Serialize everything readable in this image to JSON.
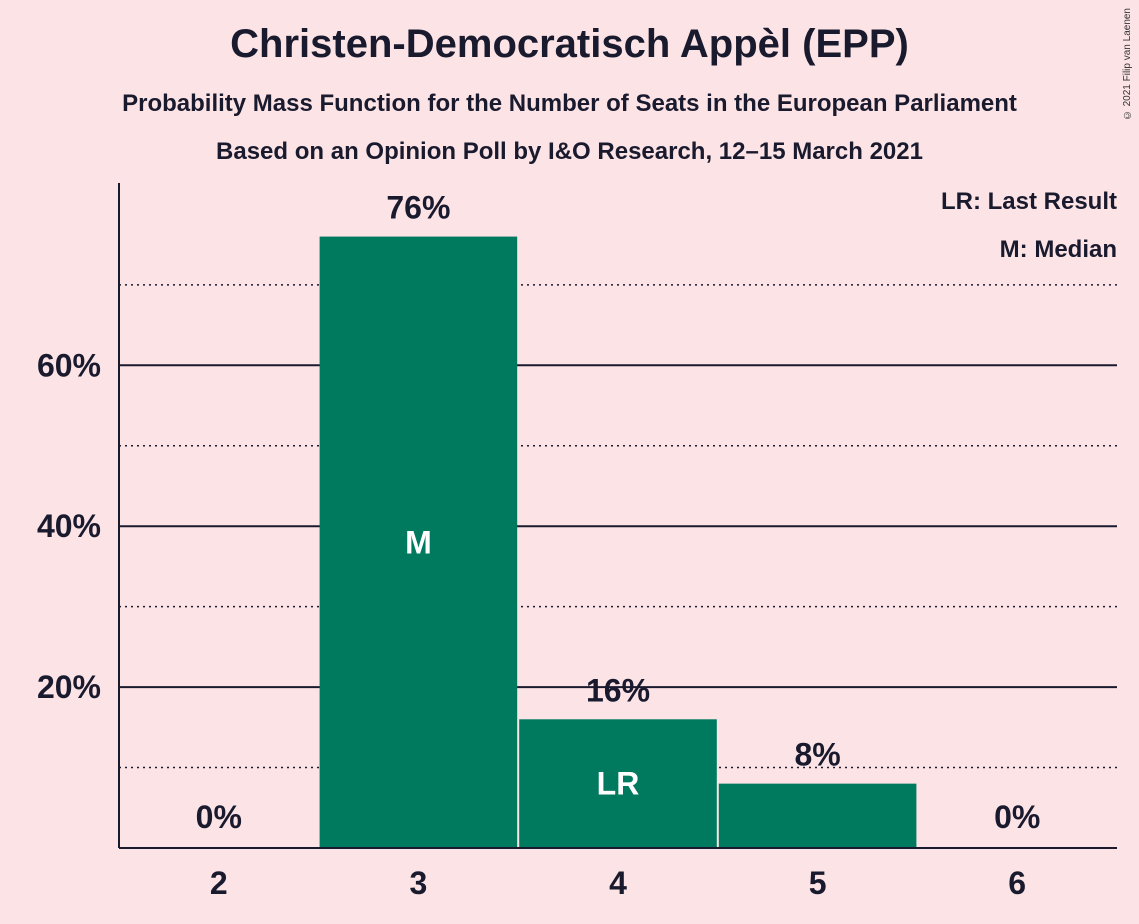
{
  "title": "Christen-Democratisch Appèl (EPP)",
  "subtitle": "Probability Mass Function for the Number of Seats in the European Parliament",
  "subtitle2": "Based on an Opinion Poll by I&O Research, 12–15 March 2021",
  "copyright": "© 2021 Filip van Laenen",
  "legend": {
    "last_result": "LR: Last Result",
    "median": "M: Median"
  },
  "colors": {
    "bar": "#007a5e",
    "background": "#fce4e6"
  },
  "chart_data": {
    "type": "bar",
    "categories": [
      "2",
      "3",
      "4",
      "5",
      "6"
    ],
    "values": [
      0,
      76,
      16,
      8,
      0
    ],
    "value_labels": [
      "0%",
      "76%",
      "16%",
      "8%",
      "0%"
    ],
    "in_bar_labels": [
      "",
      "M",
      "LR",
      "",
      ""
    ],
    "ylim": [
      0,
      83
    ],
    "yticks": [
      20,
      40,
      60
    ],
    "ytick_labels": [
      "20%",
      "40%",
      "60%"
    ],
    "minor_gridlines": [
      10,
      30,
      50,
      70
    ],
    "xlabel": "",
    "ylabel": ""
  }
}
